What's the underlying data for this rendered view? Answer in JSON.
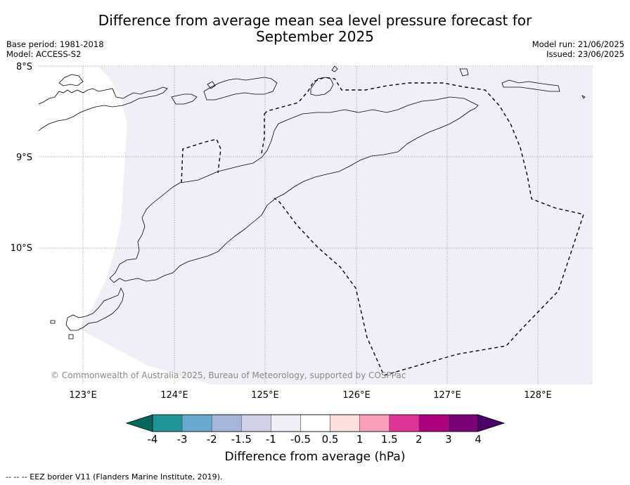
{
  "title_line1": "Difference from average mean sea level pressure forecast for",
  "title_line2": "September 2025",
  "base_period": "Base period: 1981-2018",
  "model": "Model: ACCESS-S2",
  "model_run": "Model run: 21/06/2025",
  "issued": "Issued: 23/06/2025",
  "lat_labels": [
    "8°S",
    "9°S",
    "10°S"
  ],
  "lon_labels": [
    "123°E",
    "124°E",
    "125°E",
    "126°E",
    "127°E",
    "128°E"
  ],
  "copyright": "© Commonwealth of Australia 2025, Bureau of Meteorology, supported by COSPPac",
  "colorbar": {
    "title": "Difference from average (hPa)",
    "ticks": [
      "-4",
      "-3",
      "-2",
      "-1.5",
      "-1",
      "-0.5",
      "0.5",
      "1",
      "1.5",
      "2",
      "3",
      "4"
    ],
    "colors": [
      "#00695c",
      "#1f9499",
      "#67a9cf",
      "#a6b5d9",
      "#d0d0e6",
      "#f2eef7",
      "#ffffff",
      "#fde0dd",
      "#f89fb9",
      "#dd3497",
      "#ae017e",
      "#7a0177",
      "#49006a"
    ]
  },
  "field_color": "#f2eef7",
  "footnote": "--  --  -- EEZ border V11 (Flanders Marine Institute, 2019)."
}
